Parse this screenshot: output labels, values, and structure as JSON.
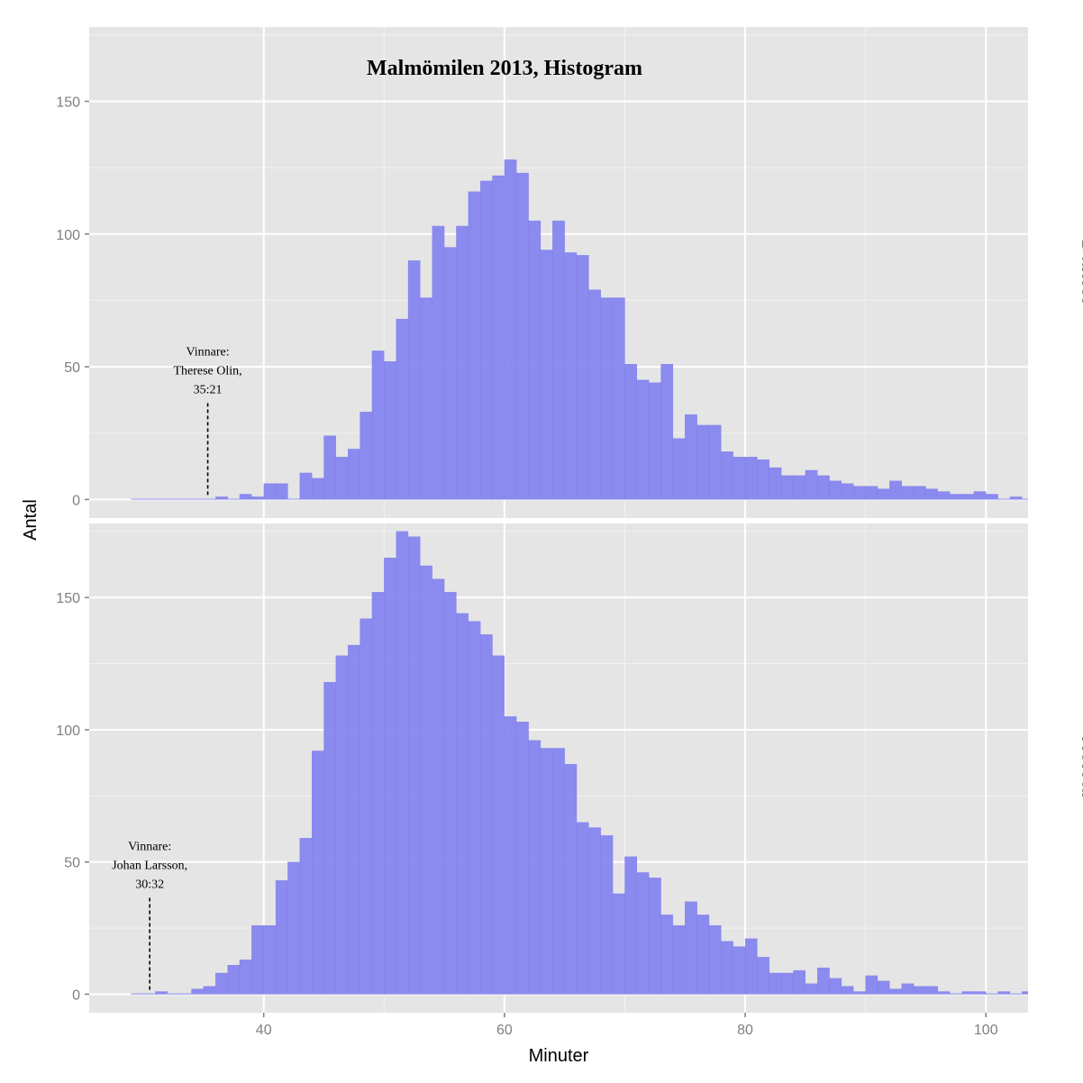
{
  "chart_data": {
    "type": "bar",
    "title": "Malmömilen 2013, Histogram",
    "xlabel": "Minuter",
    "ylabel": "Antal",
    "xlim": [
      25.5,
      103.5
    ],
    "ylim": [
      -7,
      178
    ],
    "xticks": [
      40,
      60,
      80,
      100
    ],
    "xtick_labels": [
      "40",
      "60",
      "80",
      "100"
    ],
    "yticks": [
      0,
      50,
      100,
      150
    ],
    "ytick_labels": [
      "0",
      "50",
      "100",
      "150"
    ],
    "bin_start": 29,
    "bin_width": 1,
    "grid": true,
    "bar_color": "#8080F0",
    "panel_background": "#E5E5E5",
    "grid_color": "#FFFFFF",
    "strip_background": "#FFFFFF",
    "panels": [
      {
        "name": "Damer",
        "values": [
          0,
          0,
          0,
          0,
          0,
          0,
          0,
          1,
          0,
          2,
          1,
          6,
          6,
          0,
          10,
          8,
          24,
          16,
          19,
          33,
          56,
          52,
          68,
          90,
          76,
          103,
          95,
          103,
          116,
          120,
          122,
          128,
          123,
          105,
          94,
          105,
          93,
          92,
          79,
          76,
          76,
          51,
          45,
          44,
          51,
          23,
          32,
          28,
          28,
          18,
          16,
          16,
          15,
          12,
          9,
          9,
          11,
          9,
          7,
          6,
          5,
          5,
          4,
          7,
          5,
          5,
          4,
          3,
          2,
          2,
          3,
          2,
          0,
          1,
          0,
          1,
          0,
          0,
          2,
          1
        ]
      },
      {
        "name": "Herrar",
        "values": [
          0,
          0,
          1,
          0,
          0,
          2,
          3,
          8,
          11,
          13,
          26,
          26,
          43,
          50,
          59,
          92,
          118,
          128,
          132,
          142,
          152,
          165,
          175,
          173,
          162,
          157,
          152,
          144,
          141,
          136,
          128,
          105,
          103,
          96,
          93,
          93,
          87,
          65,
          63,
          60,
          38,
          52,
          46,
          44,
          30,
          26,
          35,
          30,
          26,
          20,
          18,
          21,
          14,
          8,
          8,
          9,
          4,
          10,
          6,
          3,
          1,
          7,
          5,
          2,
          4,
          3,
          3,
          1,
          0,
          1,
          1,
          0,
          1,
          0,
          1,
          1,
          1,
          1,
          1,
          0
        ]
      }
    ],
    "annotations": [
      {
        "panel": 0,
        "lines": [
          "Vinnare:",
          "Therese Olin,",
          "35:21"
        ],
        "x": 35.35
      },
      {
        "panel": 1,
        "lines": [
          "Vinnare:",
          "Johan Larsson,",
          "30:32"
        ],
        "x": 30.53
      }
    ]
  }
}
